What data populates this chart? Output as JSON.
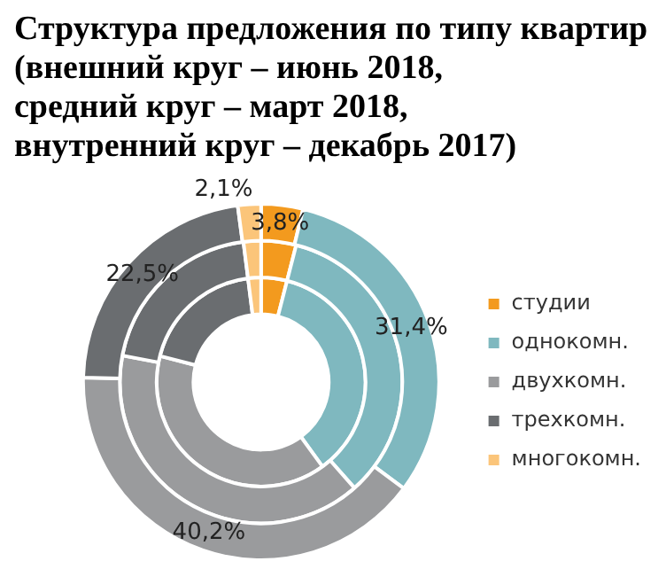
{
  "chart_data": {
    "type": "donut",
    "title": "Структура предложения по типу квартир\n(внешний круг – июнь 2018,\nсредний круг – март 2018,\nвнутренний круг – декабрь 2017)",
    "categories": [
      "студии",
      "однокомн.",
      "двухкомн.",
      "трехкомн.",
      "многокомн."
    ],
    "colors": [
      "#f39a1e",
      "#7fb8bf",
      "#9a9b9d",
      "#6a6d70",
      "#fbc57a"
    ],
    "series": [
      {
        "values": [
          3.8,
          31.4,
          40.2,
          22.5,
          2.1
        ],
        "value_labels": [
          "3,8%",
          "31,4%",
          "40,2%",
          "22,5%",
          "2,1%"
        ]
      },
      {
        "values": [
          4.0,
          34.5,
          39.5,
          20.0,
          2.0
        ]
      },
      {
        "values": [
          4.0,
          36.0,
          39.0,
          19.0,
          2.0
        ]
      }
    ],
    "legend": "right"
  }
}
